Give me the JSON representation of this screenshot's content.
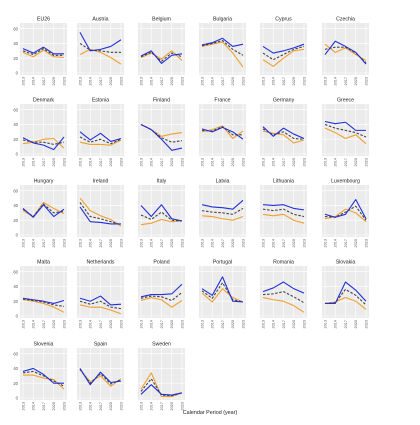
{
  "figure": {
    "xlabel": "Calendar Period (year)",
    "colors": {
      "blue": "#2230d6",
      "orange": "#f0a030",
      "dash": "#444444",
      "panel_bg": "#ebebeb",
      "grid": "#ffffff",
      "strip": "#ffffff"
    }
  },
  "chart_data": {
    "type": "line",
    "x": [
      "2013",
      "2014",
      "2017",
      "2020",
      "2023"
    ],
    "ylim": [
      0,
      65
    ],
    "yticks": [
      0,
      20,
      40,
      60
    ],
    "grid": true,
    "legend": "none",
    "panels": [
      {
        "title": "EU26",
        "blue": [
          33,
          27,
          35,
          26,
          26
        ],
        "orange": [
          28,
          22,
          31,
          22,
          21
        ],
        "dash": [
          30,
          25,
          33,
          24,
          24
        ]
      },
      {
        "title": "Austria",
        "blue": [
          55,
          30,
          32,
          36,
          45
        ],
        "orange": [
          25,
          32,
          28,
          21,
          12
        ],
        "dash": [
          40,
          31,
          30,
          28,
          28
        ]
      },
      {
        "title": "Belgium",
        "blue": [
          23,
          30,
          13,
          24,
          26
        ],
        "orange": [
          21,
          27,
          19,
          30,
          17
        ],
        "dash": [
          22,
          28,
          16,
          27,
          22
        ]
      },
      {
        "title": "Bulgaria",
        "blue": [
          38,
          41,
          47,
          36,
          39
        ],
        "orange": [
          36,
          39,
          42,
          27,
          8
        ],
        "dash": [
          37,
          40,
          44,
          32,
          24
        ]
      },
      {
        "title": "Cyprus",
        "blue": [
          36,
          27,
          30,
          34,
          39
        ],
        "orange": [
          18,
          9,
          20,
          30,
          32
        ],
        "dash": [
          27,
          18,
          25,
          32,
          36
        ]
      },
      {
        "title": "Czechia",
        "blue": [
          25,
          43,
          36,
          28,
          12
        ],
        "orange": [
          39,
          28,
          34,
          25,
          17
        ],
        "dash": [
          32,
          35,
          35,
          27,
          14
        ]
      },
      {
        "title": "Denmark",
        "blue": [
          22,
          15,
          12,
          6,
          23
        ],
        "orange": [
          14,
          16,
          20,
          21,
          8
        ],
        "dash": [
          19,
          16,
          16,
          13,
          16
        ]
      },
      {
        "title": "Estonia",
        "blue": [
          30,
          19,
          28,
          17,
          21
        ],
        "orange": [
          16,
          13,
          13,
          12,
          19
        ],
        "dash": [
          23,
          16,
          20,
          14,
          20
        ]
      },
      {
        "title": "Finland",
        "blue": [
          40,
          33,
          20,
          5,
          8
        ],
        "orange": [
          40,
          33,
          24,
          27,
          29
        ],
        "dash": [
          40,
          33,
          22,
          16,
          18
        ]
      },
      {
        "title": "France",
        "blue": [
          34,
          30,
          36,
          30,
          20
        ],
        "orange": [
          30,
          33,
          38,
          21,
          31
        ],
        "dash": [
          32,
          31,
          37,
          26,
          26
        ]
      },
      {
        "title": "Germany",
        "blue": [
          37,
          24,
          35,
          27,
          21
        ],
        "orange": [
          31,
          28,
          26,
          15,
          19
        ],
        "dash": [
          34,
          26,
          30,
          21,
          20
        ]
      },
      {
        "title": "Greece",
        "blue": [
          44,
          41,
          43,
          32,
          32
        ],
        "orange": [
          35,
          29,
          21,
          26,
          14
        ],
        "dash": [
          40,
          35,
          32,
          29,
          23
        ]
      },
      {
        "title": "Hungary",
        "blue": [
          36,
          24,
          41,
          25,
          35
        ],
        "orange": [
          33,
          25,
          44,
          36,
          29
        ],
        "dash": [
          35,
          25,
          42,
          30,
          32
        ]
      },
      {
        "title": "Ireland",
        "blue": [
          38,
          18,
          17,
          15,
          15
        ],
        "orange": [
          50,
          33,
          26,
          21,
          12
        ],
        "dash": [
          44,
          25,
          22,
          18,
          14
        ]
      },
      {
        "title": "Italy",
        "blue": [
          40,
          25,
          41,
          22,
          19
        ],
        "orange": [
          14,
          16,
          21,
          18,
          19
        ],
        "dash": [
          27,
          21,
          31,
          20,
          19
        ]
      },
      {
        "title": "Latvia",
        "blue": [
          41,
          38,
          37,
          35,
          47
        ],
        "orange": [
          26,
          25,
          22,
          20,
          25
        ],
        "dash": [
          33,
          31,
          30,
          28,
          36
        ]
      },
      {
        "title": "Lithuania",
        "blue": [
          41,
          40,
          41,
          36,
          34
        ],
        "orange": [
          28,
          26,
          28,
          20,
          16
        ],
        "dash": [
          35,
          33,
          35,
          28,
          25
        ]
      },
      {
        "title": "Luxembourg",
        "blue": [
          28,
          24,
          28,
          48,
          22
        ],
        "orange": [
          22,
          25,
          35,
          30,
          18
        ],
        "dash": [
          25,
          24,
          31,
          39,
          20
        ]
      },
      {
        "title": "Malta",
        "blue": [
          24,
          22,
          20,
          17,
          21
        ],
        "orange": [
          22,
          20,
          17,
          12,
          5
        ],
        "dash": [
          23,
          21,
          19,
          15,
          13
        ]
      },
      {
        "title": "Netherlands",
        "blue": [
          24,
          20,
          27,
          15,
          16
        ],
        "orange": [
          15,
          12,
          12,
          8,
          3
        ],
        "dash": [
          20,
          16,
          20,
          12,
          10
        ]
      },
      {
        "title": "Poland",
        "blue": [
          26,
          29,
          29,
          30,
          43
        ],
        "orange": [
          21,
          25,
          22,
          12,
          21
        ],
        "dash": [
          24,
          27,
          26,
          21,
          32
        ]
      },
      {
        "title": "Portugal",
        "blue": [
          37,
          28,
          53,
          20,
          19
        ],
        "orange": [
          31,
          19,
          37,
          25,
          19
        ],
        "dash": [
          34,
          24,
          45,
          22,
          19
        ]
      },
      {
        "title": "Romania",
        "blue": [
          33,
          38,
          46,
          37,
          31
        ],
        "orange": [
          25,
          22,
          20,
          14,
          5
        ],
        "dash": [
          29,
          30,
          33,
          26,
          18
        ]
      },
      {
        "title": "Slovakia",
        "blue": [
          17,
          17,
          46,
          35,
          20
        ],
        "orange": [
          17,
          19,
          25,
          20,
          9
        ],
        "dash": [
          17,
          18,
          36,
          28,
          15
        ]
      },
      {
        "title": "Slovenia",
        "blue": [
          36,
          40,
          32,
          20,
          20
        ],
        "orange": [
          31,
          31,
          27,
          25,
          12
        ],
        "dash": [
          34,
          36,
          30,
          23,
          16
        ]
      },
      {
        "title": "Spain",
        "blue": [
          40,
          18,
          35,
          21,
          23
        ],
        "orange": [
          38,
          22,
          30,
          16,
          26
        ],
        "dash": [
          39,
          20,
          33,
          19,
          25
        ]
      },
      {
        "title": "Sweden",
        "blue": [
          5,
          18,
          5,
          4,
          7
        ],
        "orange": [
          12,
          34,
          2,
          2,
          7
        ],
        "dash": [
          9,
          26,
          4,
          3,
          7
        ]
      }
    ]
  }
}
